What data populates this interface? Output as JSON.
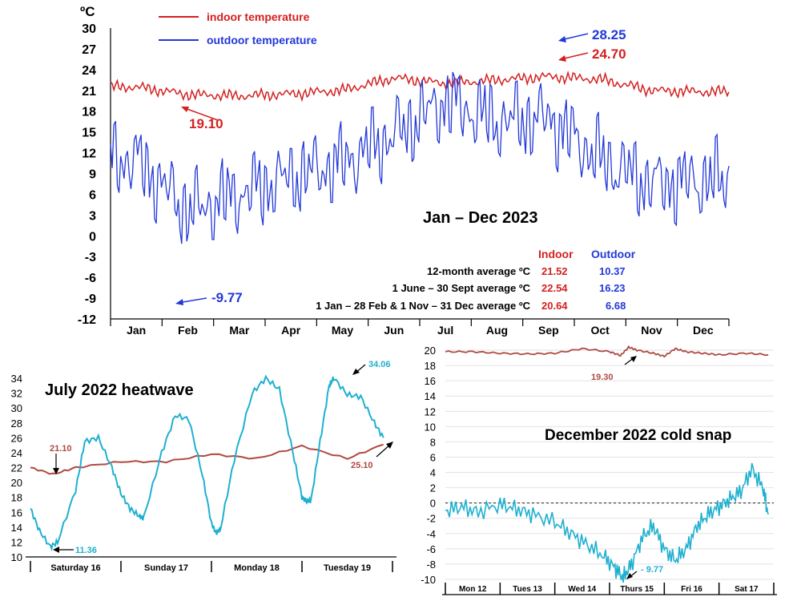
{
  "chart_data": [
    {
      "type": "line",
      "title": "Jan – Dec 2023",
      "ylabel": "ºC",
      "ylim": [
        -12,
        30
      ],
      "yticks": [
        "30",
        "27",
        "24",
        "21",
        "18",
        "15",
        "12",
        "9",
        "6",
        "3",
        "0",
        "-3",
        "-6",
        "-9",
        "-12"
      ],
      "categories": [
        "Jan",
        "Feb",
        "Mar",
        "Apr",
        "May",
        "Jun",
        "Jul",
        "Aug",
        "Sep",
        "Oct",
        "Nov",
        "Dec"
      ],
      "legend": [
        "indoor temperature",
        "outdoor temperature"
      ],
      "series": [
        {
          "name": "indoor temperature",
          "color": "#d42020",
          "values": [
            21.5,
            20.4,
            20.2,
            20.5,
            21.0,
            22.8,
            22.0,
            22.5,
            23.0,
            22.6,
            21.0,
            20.8
          ]
        },
        {
          "name": "outdoor temperature",
          "color": "#2238d8",
          "values": [
            11.0,
            3.5,
            6.0,
            8.5,
            10.5,
            14.5,
            19.5,
            16.5,
            17.0,
            11.0,
            7.5,
            8.0
          ]
        }
      ],
      "annotations": [
        {
          "label": "19.10",
          "color": "#d42020",
          "x": "Feb",
          "value": 19.1
        },
        {
          "label": "-9.77",
          "color": "#2238d8",
          "x": "Feb",
          "value": -9.77
        },
        {
          "label": "28.25",
          "color": "#2238d8",
          "x": "Sep",
          "value": 28.25
        },
        {
          "label": "24.70",
          "color": "#d42020",
          "x": "Sep",
          "value": 24.7
        }
      ],
      "summary_table": {
        "header_indoor": "Indoor",
        "header_outdoor": "Outdoor",
        "rows": [
          {
            "label": "12-month average ºC",
            "indoor": "21.52",
            "outdoor": "10.37"
          },
          {
            "label": "1 June – 30 Sept average ºC",
            "indoor": "22.54",
            "outdoor": "16.23"
          },
          {
            "label": "1 Jan – 28 Feb & 1 Nov – 31 Dec  average ºC",
            "indoor": "20.64",
            "outdoor": "6.68"
          }
        ]
      }
    },
    {
      "type": "line",
      "title": "July 2022 heatwave",
      "ylim": [
        10,
        34
      ],
      "yticks": [
        "34",
        "32",
        "30",
        "28",
        "26",
        "24",
        "22",
        "20",
        "18",
        "16",
        "14",
        "12",
        "10"
      ],
      "categories": [
        "Saturday 16",
        "Sunday 17",
        "Monday 18",
        "Tuesday 19"
      ],
      "series": [
        {
          "name": "indoor",
          "color": "#b04a42",
          "x": [
            0,
            0.25,
            0.5,
            1.0,
            1.5,
            2.0,
            2.5,
            3.0,
            3.5,
            3.9
          ],
          "values": [
            22.0,
            21.1,
            22.0,
            22.8,
            22.8,
            23.8,
            23.2,
            24.9,
            23.2,
            25.1
          ]
        },
        {
          "name": "outdoor",
          "color": "#1fb0d0",
          "x": [
            0,
            0.1,
            0.22,
            0.3,
            0.5,
            0.6,
            0.75,
            0.9,
            1.0,
            1.1,
            1.2,
            1.25,
            1.45,
            1.6,
            1.75,
            1.9,
            2.0,
            2.05,
            2.1,
            2.25,
            2.45,
            2.6,
            2.75,
            2.9,
            3.0,
            3.05,
            3.1,
            3.2,
            3.3,
            3.35,
            3.5,
            3.65,
            3.8,
            3.9
          ],
          "values": [
            16.5,
            13.5,
            11.36,
            12.0,
            19.0,
            25.5,
            26.0,
            22.0,
            18.5,
            16.5,
            15.5,
            15.2,
            24.0,
            29.0,
            28.5,
            21.0,
            14.5,
            13.2,
            13.8,
            23.0,
            32.0,
            34.0,
            32.5,
            24.0,
            18.0,
            17.5,
            17.6,
            25.5,
            33.0,
            34.06,
            31.8,
            31.5,
            28.0,
            26.0
          ]
        }
      ],
      "annotations": [
        {
          "label": "21.10",
          "color": "#b04a42",
          "value": 21.1
        },
        {
          "label": "11.36",
          "color": "#1fb0d0",
          "value": 11.36
        },
        {
          "label": "34.06",
          "color": "#1fb0d0",
          "value": 34.06
        },
        {
          "label": "25.10",
          "color": "#b04a42",
          "value": 25.1
        }
      ]
    },
    {
      "type": "line",
      "title": "December 2022 cold snap",
      "ylim": [
        -10,
        20
      ],
      "yticks": [
        "20",
        "18",
        "16",
        "14",
        "12",
        "10",
        "8",
        "6",
        "4",
        "2",
        "0",
        "-2",
        "-4",
        "-6",
        "-8",
        "-10"
      ],
      "categories": [
        "Mon 12",
        "Tues 13",
        "Wed 14",
        "Thurs 15",
        "Fri 16",
        "Sat 17"
      ],
      "series": [
        {
          "name": "indoor",
          "color": "#b04a42",
          "x": [
            0,
            0.5,
            1.0,
            1.5,
            2.0,
            2.5,
            3.0,
            3.2,
            3.35,
            3.5,
            3.8,
            4.0,
            4.2,
            4.4,
            4.7,
            5.0,
            5.5,
            5.9
          ],
          "values": [
            19.8,
            19.8,
            19.6,
            19.5,
            19.6,
            20.2,
            19.8,
            19.3,
            20.4,
            20.0,
            19.6,
            19.2,
            20.2,
            19.8,
            19.6,
            19.4,
            19.6,
            19.4
          ]
        },
        {
          "name": "outdoor",
          "color": "#1fb0d0",
          "x": [
            0,
            0.3,
            0.6,
            1.0,
            1.3,
            1.6,
            2.0,
            2.3,
            2.6,
            2.9,
            3.1,
            3.25,
            3.4,
            3.6,
            3.8,
            4.0,
            4.2,
            4.4,
            4.6,
            4.8,
            5.0,
            5.2,
            5.4,
            5.6,
            5.8,
            5.9
          ],
          "values": [
            -1.0,
            -0.5,
            -1.2,
            -0.2,
            -0.8,
            -1.5,
            -2.5,
            -4.0,
            -5.5,
            -7.0,
            -8.5,
            -9.77,
            -8.0,
            -4.5,
            -3.0,
            -6.0,
            -7.5,
            -6.0,
            -3.0,
            -1.5,
            -0.5,
            0.5,
            1.5,
            4.5,
            2.0,
            -1.5
          ]
        }
      ],
      "zero_line": true,
      "annotations": [
        {
          "label": "19.30",
          "color": "#b04a42",
          "value": 19.3
        },
        {
          "label": "- 9.77",
          "color": "#1fb0d0",
          "value": -9.77
        }
      ]
    }
  ]
}
